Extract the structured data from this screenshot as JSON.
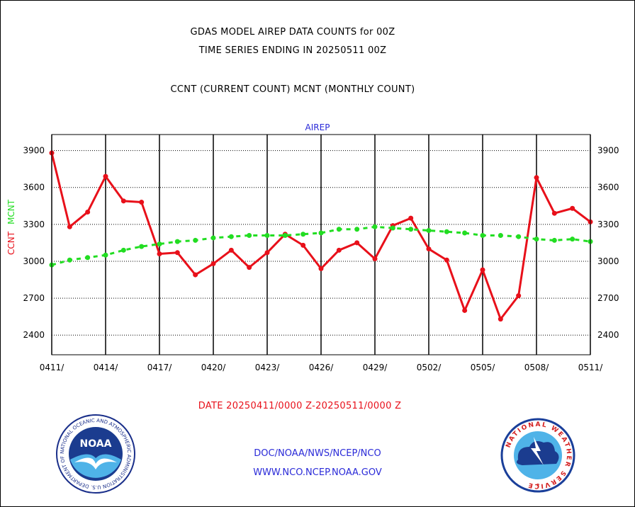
{
  "header": {
    "line1": "GDAS MODEL AIREP DATA COUNTS for 00Z",
    "line2": "TIME SERIES ENDING IN 20250511 00Z",
    "line3": "CCNT (CURRENT COUNT) MCNT (MONTHLY COUNT)"
  },
  "chart_data": {
    "type": "line",
    "title": "AIREP",
    "ylabel_ccnt": "CCNT",
    "ylabel_mcnt": "MCNT",
    "x": [
      "0411",
      "0412",
      "0413",
      "0414",
      "0415",
      "0416",
      "0417",
      "0418",
      "0419",
      "0420",
      "0421",
      "0422",
      "0423",
      "0424",
      "0425",
      "0426",
      "0427",
      "0428",
      "0429",
      "0430",
      "0501",
      "0502",
      "0503",
      "0504",
      "0505",
      "0506",
      "0507",
      "0508",
      "0509",
      "0510",
      "0511"
    ],
    "xtick_labels": [
      "0411/",
      "0414/",
      "0417/",
      "0420/",
      "0423/",
      "0426/",
      "0429/",
      "0502/",
      "0505/",
      "0508/",
      "0511/"
    ],
    "yticks": [
      2400,
      2700,
      3000,
      3300,
      3600,
      3900
    ],
    "ylim": [
      2240,
      4030
    ],
    "grid": true,
    "series": [
      {
        "name": "CCNT",
        "color": "#e8101a",
        "style": "solid",
        "values": [
          3880,
          3280,
          3400,
          3690,
          3490,
          3480,
          3060,
          3070,
          2890,
          2980,
          3090,
          2950,
          3070,
          3220,
          3130,
          2940,
          3090,
          3150,
          3020,
          3290,
          3350,
          3100,
          3010,
          2600,
          2930,
          2530,
          2720,
          3680,
          3390,
          3430,
          3320
        ]
      },
      {
        "name": "MCNT",
        "color": "#22dd22",
        "style": "dashed",
        "values": [
          2970,
          3010,
          3030,
          3050,
          3090,
          3120,
          3140,
          3160,
          3170,
          3190,
          3200,
          3210,
          3210,
          3210,
          3220,
          3230,
          3260,
          3260,
          3280,
          3270,
          3260,
          3250,
          3240,
          3230,
          3210,
          3210,
          3200,
          3180,
          3170,
          3180,
          3160
        ]
      }
    ]
  },
  "footer": {
    "date_range": "DATE 20250411/0000 Z-20250511/0000 Z",
    "link1": "DOC/NOAA/NWS/NCEP/NCO",
    "link2": "WWW.NCO.NCEP.NOAA.GOV",
    "noaa_logo_text": "NOAA",
    "noaa_ring_text": "NATIONAL OCEANIC AND ATMOSPHERIC ADMINISTRATION U.S. DEPARTMENT OF COMMERCE",
    "nws_ring_text": "NATIONAL WEATHER SERVICE"
  }
}
